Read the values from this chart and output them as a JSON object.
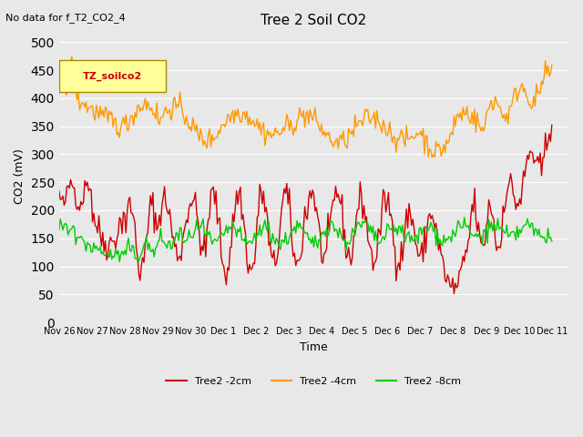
{
  "title": "Tree 2 Soil CO2",
  "subtitle": "No data for f_T2_CO2_4",
  "xlabel": "Time",
  "ylabel": "CO2 (mV)",
  "ylim": [
    0,
    520
  ],
  "yticks": [
    0,
    50,
    100,
    150,
    200,
    250,
    300,
    350,
    400,
    450,
    500
  ],
  "bg_color": "#e8e8e8",
  "legend_box_color": "#ffff99",
  "legend_box_label": "TZ_soilco2",
  "series": {
    "red": {
      "label": "Tree2 -2cm",
      "color": "#cc0000"
    },
    "orange": {
      "label": "Tree2 -4cm",
      "color": "#ff9900"
    },
    "green": {
      "label": "Tree2 -8cm",
      "color": "#00cc00"
    }
  },
  "xtick_labels": [
    "Nov 26",
    "Nov 27",
    "Nov 28",
    "Nov 29",
    "Nov 30",
    "Dec 1",
    "Dec 2",
    "Dec 3",
    "Dec 4",
    "Dec 5",
    "Dec 6",
    "Dec 7",
    "Dec 8",
    "Dec 9",
    "Dec 10",
    "Dec 11"
  ],
  "num_days": 16
}
